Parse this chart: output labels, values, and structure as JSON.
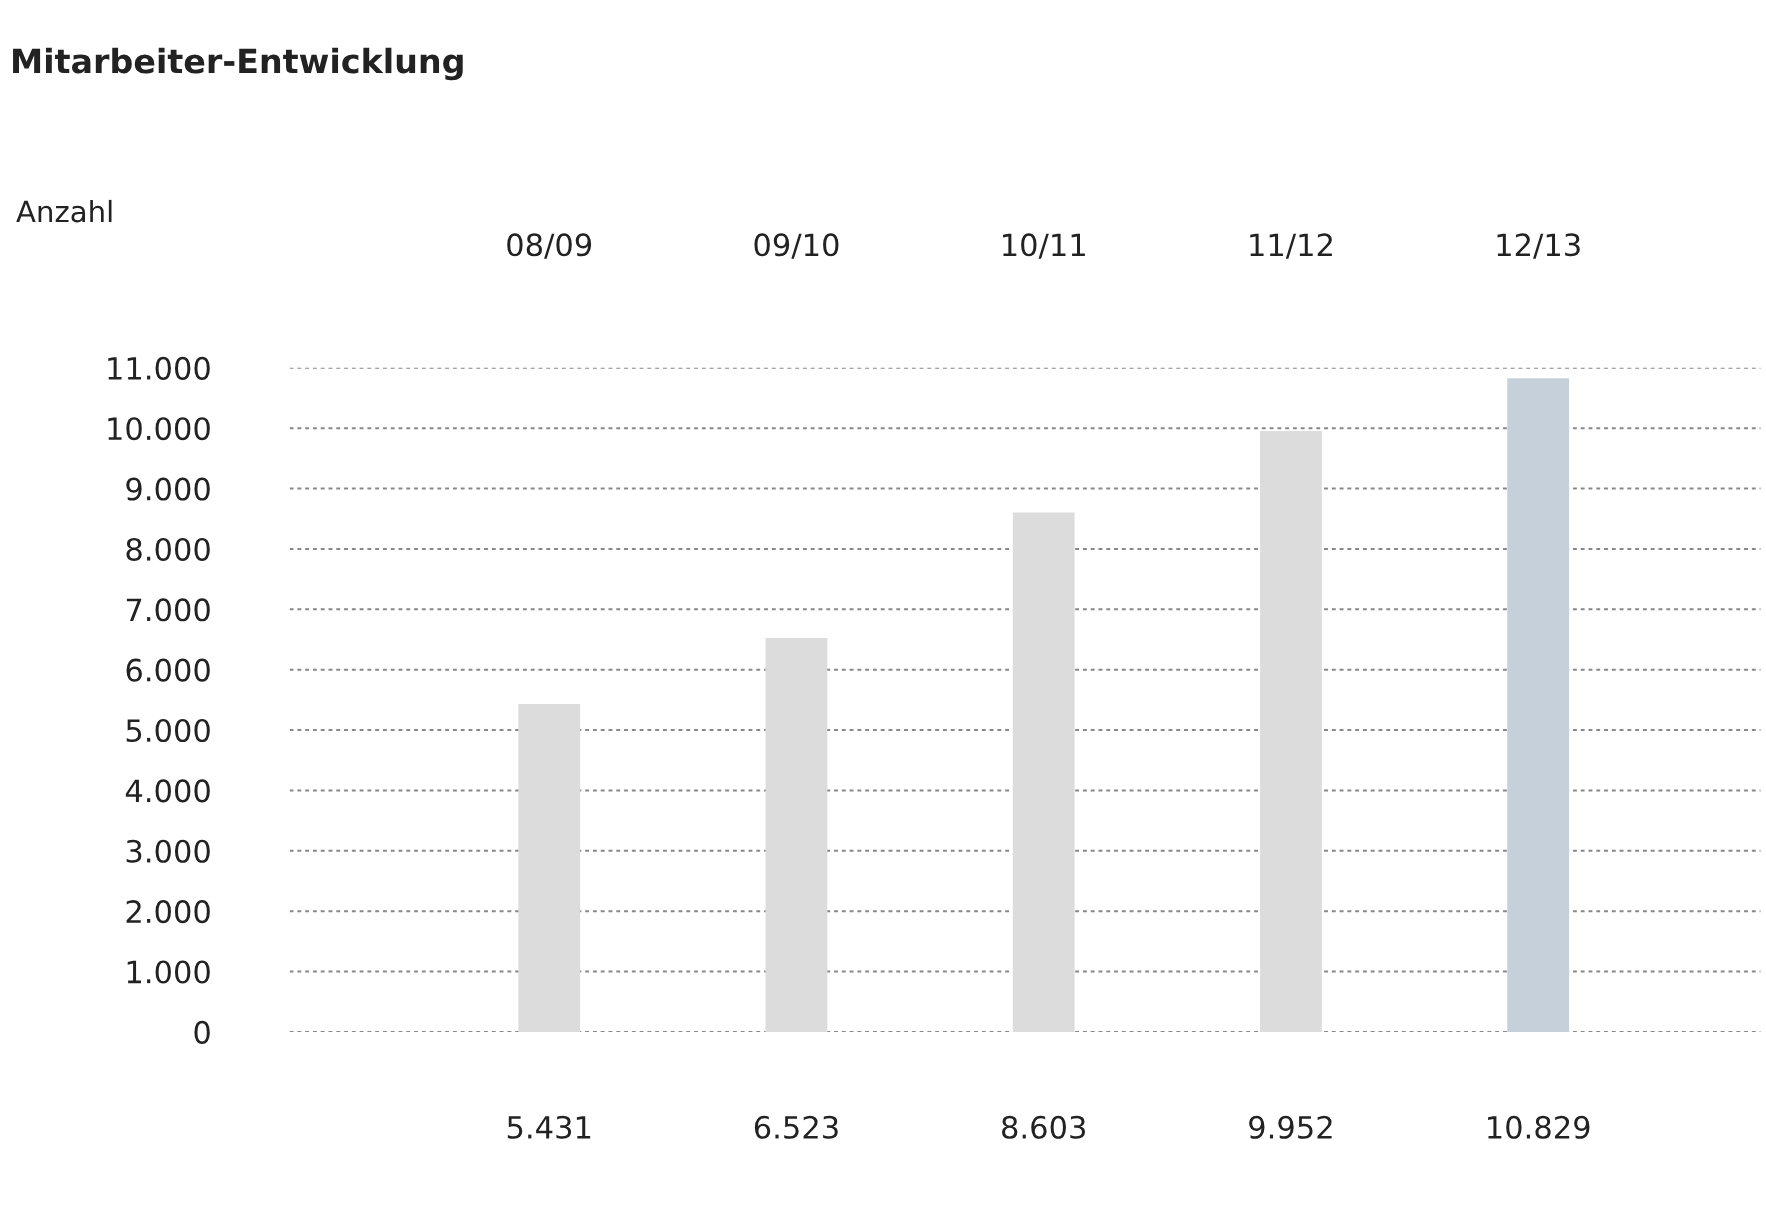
{
  "chart_data": {
    "type": "bar",
    "title": "Mitarbeiter-Entwicklung",
    "ylabel": "Anzahl",
    "categories": [
      "08/09",
      "09/10",
      "10/11",
      "11/12",
      "12/13"
    ],
    "values": [
      5431,
      6523,
      8603,
      9952,
      10829
    ],
    "colors": [
      "#dcdcdc",
      "#dcdcdc",
      "#dcdcdc",
      "#dcdcdc",
      "#c5d0da"
    ],
    "value_labels": [
      "5.431",
      "6.523",
      "8.603",
      "9.952",
      "10.829"
    ],
    "ylim": [
      0,
      11000
    ],
    "yticks": [
      {
        "value": 0,
        "label": "0"
      },
      {
        "value": 1000,
        "label": "1.000"
      },
      {
        "value": 2000,
        "label": "2.000"
      },
      {
        "value": 3000,
        "label": "3.000"
      },
      {
        "value": 4000,
        "label": "4.000"
      },
      {
        "value": 5000,
        "label": "5.000"
      },
      {
        "value": 6000,
        "label": "6.000"
      },
      {
        "value": 7000,
        "label": "7.000"
      },
      {
        "value": 8000,
        "label": "8.000"
      },
      {
        "value": 9000,
        "label": "9.000"
      },
      {
        "value": 10000,
        "label": "10.000"
      },
      {
        "value": 11000,
        "label": "11.000"
      }
    ],
    "grid": "y"
  }
}
